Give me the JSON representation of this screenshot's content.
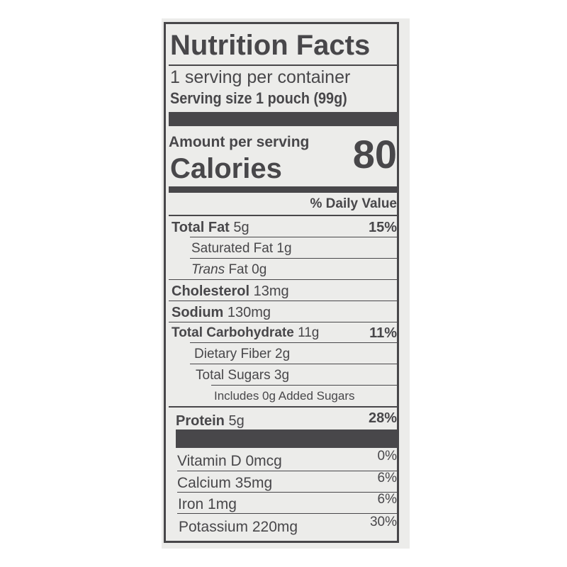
{
  "title": "Nutrition Facts",
  "servings_per_container": "1 serving per container",
  "serving_size": "Serving size 1 pouch (99g)",
  "amount_per_serving": "Amount per serving",
  "calories_label": "Calories",
  "calories_value": "80",
  "daily_value_header": "% Daily Value",
  "nutrients": [
    {
      "name": "Total Fat",
      "amount": "5g",
      "dv": "15%"
    },
    {
      "name": "Saturated Fat",
      "amount": "1g",
      "dv": ""
    },
    {
      "name": "Trans",
      "name_suffix": "Fat 0g",
      "dv": ""
    },
    {
      "name": "Cholesterol",
      "amount": "13mg",
      "dv": ""
    },
    {
      "name": "Sodium",
      "amount": "130mg",
      "dv": ""
    },
    {
      "name": "Total Carbohydrate",
      "amount": "11g",
      "dv": "11%"
    },
    {
      "name": "Dietary Fiber",
      "amount": "2g",
      "dv": ""
    },
    {
      "name": "Total Sugars",
      "amount": "3g",
      "dv": ""
    },
    {
      "name": "Includes 0g Added Sugars",
      "dv": ""
    },
    {
      "name": "Protein",
      "amount": "5g",
      "dv": "28%"
    }
  ],
  "vitamins": [
    {
      "label": "Vitamin D 0mcg",
      "dv": "0%"
    },
    {
      "label": "Calcium 35mg",
      "dv": "6%"
    },
    {
      "label": "Iron 1mg",
      "dv": "6%"
    },
    {
      "label": "Potassium 220mg",
      "dv": "30%"
    }
  ]
}
